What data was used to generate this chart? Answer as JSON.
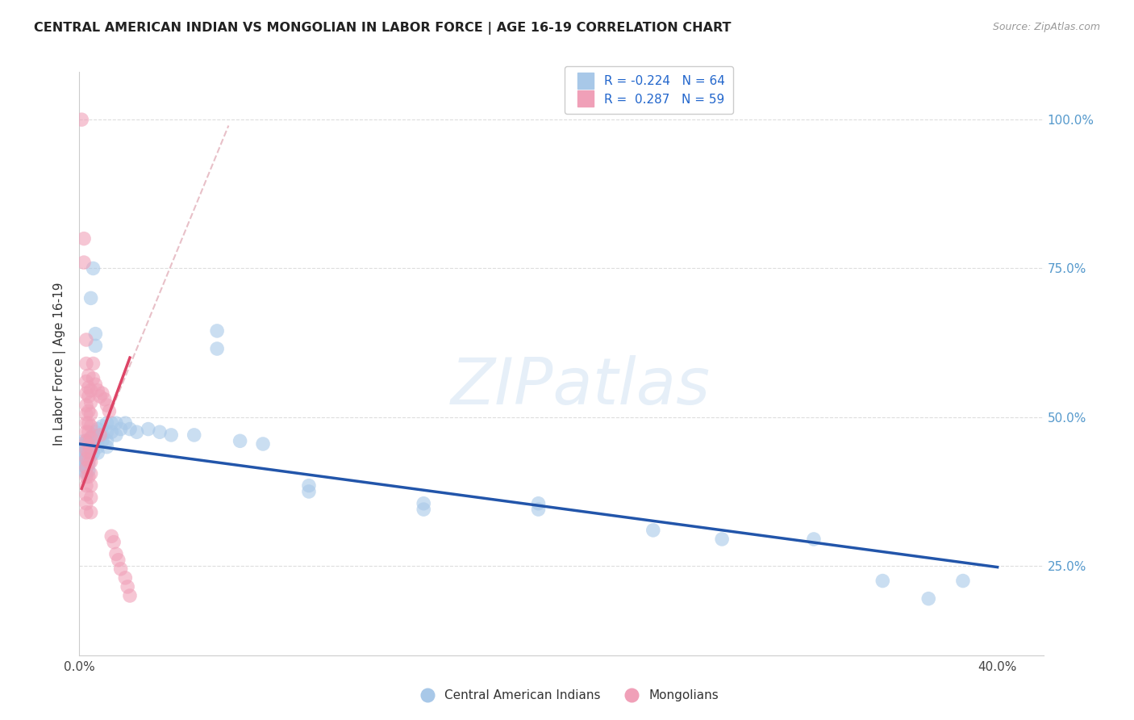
{
  "title": "CENTRAL AMERICAN INDIAN VS MONGOLIAN IN LABOR FORCE | AGE 16-19 CORRELATION CHART",
  "source": "Source: ZipAtlas.com",
  "ylabel": "In Labor Force | Age 16-19",
  "watermark": "ZIPatlas",
  "blue_color": "#a8c8e8",
  "pink_color": "#f0a0b8",
  "blue_line_color": "#2255aa",
  "pink_line_color": "#dd4466",
  "diag_line_color": "#e8c0c8",
  "blue_scatter": [
    [
      0.001,
      0.455
    ],
    [
      0.001,
      0.44
    ],
    [
      0.001,
      0.43
    ],
    [
      0.001,
      0.42
    ],
    [
      0.002,
      0.46
    ],
    [
      0.002,
      0.45
    ],
    [
      0.002,
      0.44
    ],
    [
      0.002,
      0.43
    ],
    [
      0.002,
      0.42
    ],
    [
      0.002,
      0.41
    ],
    [
      0.003,
      0.455
    ],
    [
      0.003,
      0.445
    ],
    [
      0.003,
      0.435
    ],
    [
      0.003,
      0.425
    ],
    [
      0.003,
      0.415
    ],
    [
      0.003,
      0.405
    ],
    [
      0.004,
      0.46
    ],
    [
      0.004,
      0.45
    ],
    [
      0.004,
      0.44
    ],
    [
      0.004,
      0.43
    ],
    [
      0.004,
      0.42
    ],
    [
      0.004,
      0.41
    ],
    [
      0.005,
      0.465
    ],
    [
      0.005,
      0.455
    ],
    [
      0.005,
      0.445
    ],
    [
      0.005,
      0.435
    ],
    [
      0.005,
      0.7
    ],
    [
      0.006,
      0.75
    ],
    [
      0.006,
      0.47
    ],
    [
      0.006,
      0.46
    ],
    [
      0.006,
      0.45
    ],
    [
      0.006,
      0.44
    ],
    [
      0.007,
      0.475
    ],
    [
      0.007,
      0.465
    ],
    [
      0.007,
      0.64
    ],
    [
      0.007,
      0.62
    ],
    [
      0.008,
      0.48
    ],
    [
      0.008,
      0.46
    ],
    [
      0.008,
      0.45
    ],
    [
      0.008,
      0.44
    ],
    [
      0.01,
      0.485
    ],
    [
      0.01,
      0.47
    ],
    [
      0.01,
      0.46
    ],
    [
      0.012,
      0.49
    ],
    [
      0.012,
      0.475
    ],
    [
      0.012,
      0.46
    ],
    [
      0.012,
      0.45
    ],
    [
      0.014,
      0.49
    ],
    [
      0.014,
      0.475
    ],
    [
      0.016,
      0.49
    ],
    [
      0.016,
      0.47
    ],
    [
      0.018,
      0.48
    ],
    [
      0.02,
      0.49
    ],
    [
      0.022,
      0.48
    ],
    [
      0.025,
      0.475
    ],
    [
      0.03,
      0.48
    ],
    [
      0.035,
      0.475
    ],
    [
      0.04,
      0.47
    ],
    [
      0.05,
      0.47
    ],
    [
      0.06,
      0.645
    ],
    [
      0.06,
      0.615
    ],
    [
      0.07,
      0.46
    ],
    [
      0.08,
      0.455
    ],
    [
      0.1,
      0.385
    ],
    [
      0.1,
      0.375
    ],
    [
      0.15,
      0.355
    ],
    [
      0.15,
      0.345
    ],
    [
      0.2,
      0.355
    ],
    [
      0.2,
      0.345
    ],
    [
      0.25,
      0.31
    ],
    [
      0.28,
      0.295
    ],
    [
      0.32,
      0.295
    ],
    [
      0.35,
      0.225
    ],
    [
      0.37,
      0.195
    ],
    [
      0.385,
      0.225
    ]
  ],
  "pink_scatter": [
    [
      0.001,
      1.0
    ],
    [
      0.002,
      0.8
    ],
    [
      0.002,
      0.76
    ],
    [
      0.003,
      0.63
    ],
    [
      0.003,
      0.59
    ],
    [
      0.003,
      0.56
    ],
    [
      0.003,
      0.54
    ],
    [
      0.003,
      0.52
    ],
    [
      0.003,
      0.505
    ],
    [
      0.003,
      0.49
    ],
    [
      0.003,
      0.475
    ],
    [
      0.003,
      0.46
    ],
    [
      0.003,
      0.445
    ],
    [
      0.003,
      0.43
    ],
    [
      0.003,
      0.415
    ],
    [
      0.003,
      0.4
    ],
    [
      0.003,
      0.385
    ],
    [
      0.003,
      0.37
    ],
    [
      0.003,
      0.355
    ],
    [
      0.003,
      0.34
    ],
    [
      0.004,
      0.57
    ],
    [
      0.004,
      0.55
    ],
    [
      0.004,
      0.535
    ],
    [
      0.004,
      0.51
    ],
    [
      0.004,
      0.49
    ],
    [
      0.004,
      0.475
    ],
    [
      0.004,
      0.455
    ],
    [
      0.004,
      0.44
    ],
    [
      0.004,
      0.425
    ],
    [
      0.004,
      0.4
    ],
    [
      0.005,
      0.545
    ],
    [
      0.005,
      0.525
    ],
    [
      0.005,
      0.505
    ],
    [
      0.005,
      0.485
    ],
    [
      0.005,
      0.465
    ],
    [
      0.005,
      0.445
    ],
    [
      0.005,
      0.425
    ],
    [
      0.005,
      0.405
    ],
    [
      0.005,
      0.385
    ],
    [
      0.005,
      0.365
    ],
    [
      0.005,
      0.34
    ],
    [
      0.006,
      0.59
    ],
    [
      0.006,
      0.565
    ],
    [
      0.007,
      0.555
    ],
    [
      0.008,
      0.545
    ],
    [
      0.009,
      0.535
    ],
    [
      0.009,
      0.47
    ],
    [
      0.01,
      0.54
    ],
    [
      0.011,
      0.53
    ],
    [
      0.012,
      0.52
    ],
    [
      0.013,
      0.51
    ],
    [
      0.014,
      0.3
    ],
    [
      0.015,
      0.29
    ],
    [
      0.016,
      0.27
    ],
    [
      0.017,
      0.26
    ],
    [
      0.018,
      0.245
    ],
    [
      0.02,
      0.23
    ],
    [
      0.021,
      0.215
    ],
    [
      0.022,
      0.2
    ]
  ],
  "blue_line": {
    "x": [
      0.0,
      0.4
    ],
    "y": [
      0.455,
      0.248
    ]
  },
  "pink_line": {
    "x": [
      0.001,
      0.022
    ],
    "y": [
      0.38,
      0.6
    ]
  },
  "diag_line": {
    "x": [
      0.001,
      0.065
    ],
    "y": [
      0.39,
      0.99
    ]
  },
  "xlim": [
    0.0,
    0.42
  ],
  "ylim": [
    0.1,
    1.08
  ],
  "xticks": [
    0.0,
    0.05,
    0.1,
    0.15,
    0.2,
    0.25,
    0.3,
    0.35,
    0.4
  ],
  "xticklabels": [
    "0.0%",
    "",
    "",
    "",
    "",
    "",
    "",
    "",
    "40.0%"
  ],
  "yticks_right": [
    0.25,
    0.5,
    0.75,
    1.0
  ],
  "yticklabels_right": [
    "25.0%",
    "50.0%",
    "75.0%",
    "100.0%"
  ]
}
